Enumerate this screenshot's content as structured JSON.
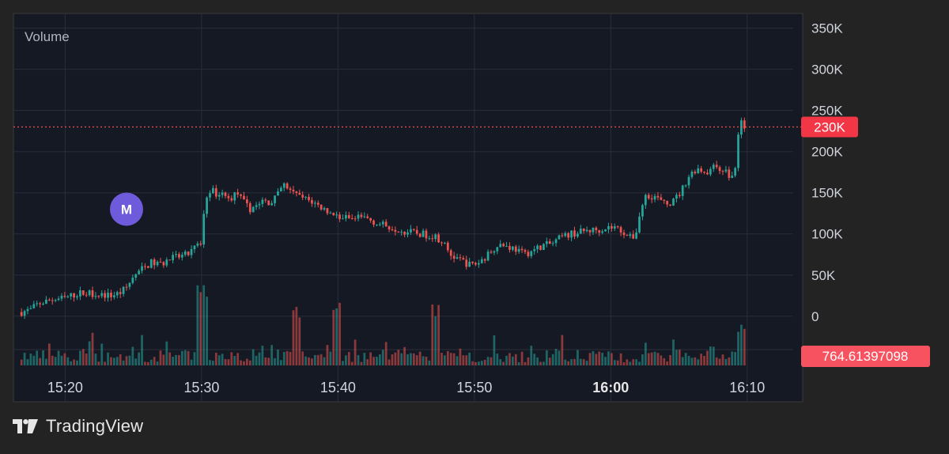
{
  "chart_data": {
    "type": "candlestick+bar",
    "pane_title": "Volume",
    "x_ticks": [
      {
        "label": "15:20",
        "t": 15
      },
      {
        "label": "15:30",
        "t": 25
      },
      {
        "label": "15:40",
        "t": 35
      },
      {
        "label": "15:50",
        "t": 45
      },
      {
        "label": "16:00",
        "t": 55,
        "bold": true
      },
      {
        "label": "16:10",
        "t": 65
      }
    ],
    "x_range": [
      11.5,
      68.2
    ],
    "y_ticks": [
      "350K",
      "300K",
      "250K",
      "200K",
      "150K",
      "100K",
      "50K",
      "0"
    ],
    "y_tick_values": [
      350000,
      300000,
      250000,
      200000,
      150000,
      100000,
      50000,
      0
    ],
    "y_range": [
      -5000,
      365000
    ],
    "grid": true,
    "last_value": {
      "label": "230K",
      "value": 230000
    },
    "volume_last": {
      "label": "764.61397098"
    },
    "marker": {
      "label": "M",
      "t": 19.5,
      "value": 130000
    },
    "series_anchor_points": [
      [
        11.8,
        5000
      ],
      [
        12.5,
        8000
      ],
      [
        13,
        15000
      ],
      [
        14,
        20000
      ],
      [
        15,
        22000
      ],
      [
        16,
        28000
      ],
      [
        17,
        28000
      ],
      [
        17.8,
        26000
      ],
      [
        18.3,
        25000
      ],
      [
        19,
        28000
      ],
      [
        19.5,
        35000
      ],
      [
        20,
        48000
      ],
      [
        20.7,
        58000
      ],
      [
        21.3,
        65000
      ],
      [
        22,
        63000
      ],
      [
        22.7,
        70000
      ],
      [
        23.3,
        72000
      ],
      [
        24,
        75000
      ],
      [
        24.6,
        85000
      ],
      [
        25,
        90000
      ],
      [
        25.2,
        135000
      ],
      [
        25.5,
        155000
      ],
      [
        26,
        150000
      ],
      [
        26.5,
        148000
      ],
      [
        27,
        142000
      ],
      [
        27.6,
        150000
      ],
      [
        28,
        140000
      ],
      [
        28.5,
        130000
      ],
      [
        29,
        135000
      ],
      [
        29.5,
        140000
      ],
      [
        30,
        138000
      ],
      [
        30.5,
        145000
      ],
      [
        31,
        160000
      ],
      [
        31.5,
        152000
      ],
      [
        32,
        146000
      ],
      [
        33,
        140000
      ],
      [
        34,
        130000
      ],
      [
        35,
        122000
      ],
      [
        36,
        118000
      ],
      [
        37,
        120000
      ],
      [
        38,
        112000
      ],
      [
        39,
        108000
      ],
      [
        40,
        103000
      ],
      [
        41,
        100000
      ],
      [
        42,
        98000
      ],
      [
        42.7,
        90000
      ],
      [
        43.2,
        75000
      ],
      [
        44,
        68000
      ],
      [
        44.7,
        62000
      ],
      [
        45.3,
        65000
      ],
      [
        46,
        75000
      ],
      [
        46.7,
        88000
      ],
      [
        47.2,
        86000
      ],
      [
        48,
        82000
      ],
      [
        48.6,
        75000
      ],
      [
        49.3,
        80000
      ],
      [
        50,
        86000
      ],
      [
        50.7,
        88000
      ],
      [
        51.3,
        95000
      ],
      [
        52,
        100000
      ],
      [
        52.7,
        102000
      ],
      [
        53.3,
        104000
      ],
      [
        54,
        105000
      ],
      [
        54.7,
        108000
      ],
      [
        55.3,
        108000
      ],
      [
        56,
        102000
      ],
      [
        56.4,
        95000
      ],
      [
        56.8,
        98000
      ],
      [
        57.2,
        130000
      ],
      [
        57.6,
        148000
      ],
      [
        58.3,
        145000
      ],
      [
        59,
        135000
      ],
      [
        59.6,
        140000
      ],
      [
        60.1,
        150000
      ],
      [
        60.7,
        170000
      ],
      [
        61.3,
        180000
      ],
      [
        62,
        175000
      ],
      [
        62.7,
        182000
      ],
      [
        63.3,
        178000
      ],
      [
        63.8,
        168000
      ],
      [
        64.1,
        175000
      ],
      [
        64.3,
        215000
      ],
      [
        64.5,
        235000
      ],
      [
        64.8,
        232000
      ]
    ]
  }
}
